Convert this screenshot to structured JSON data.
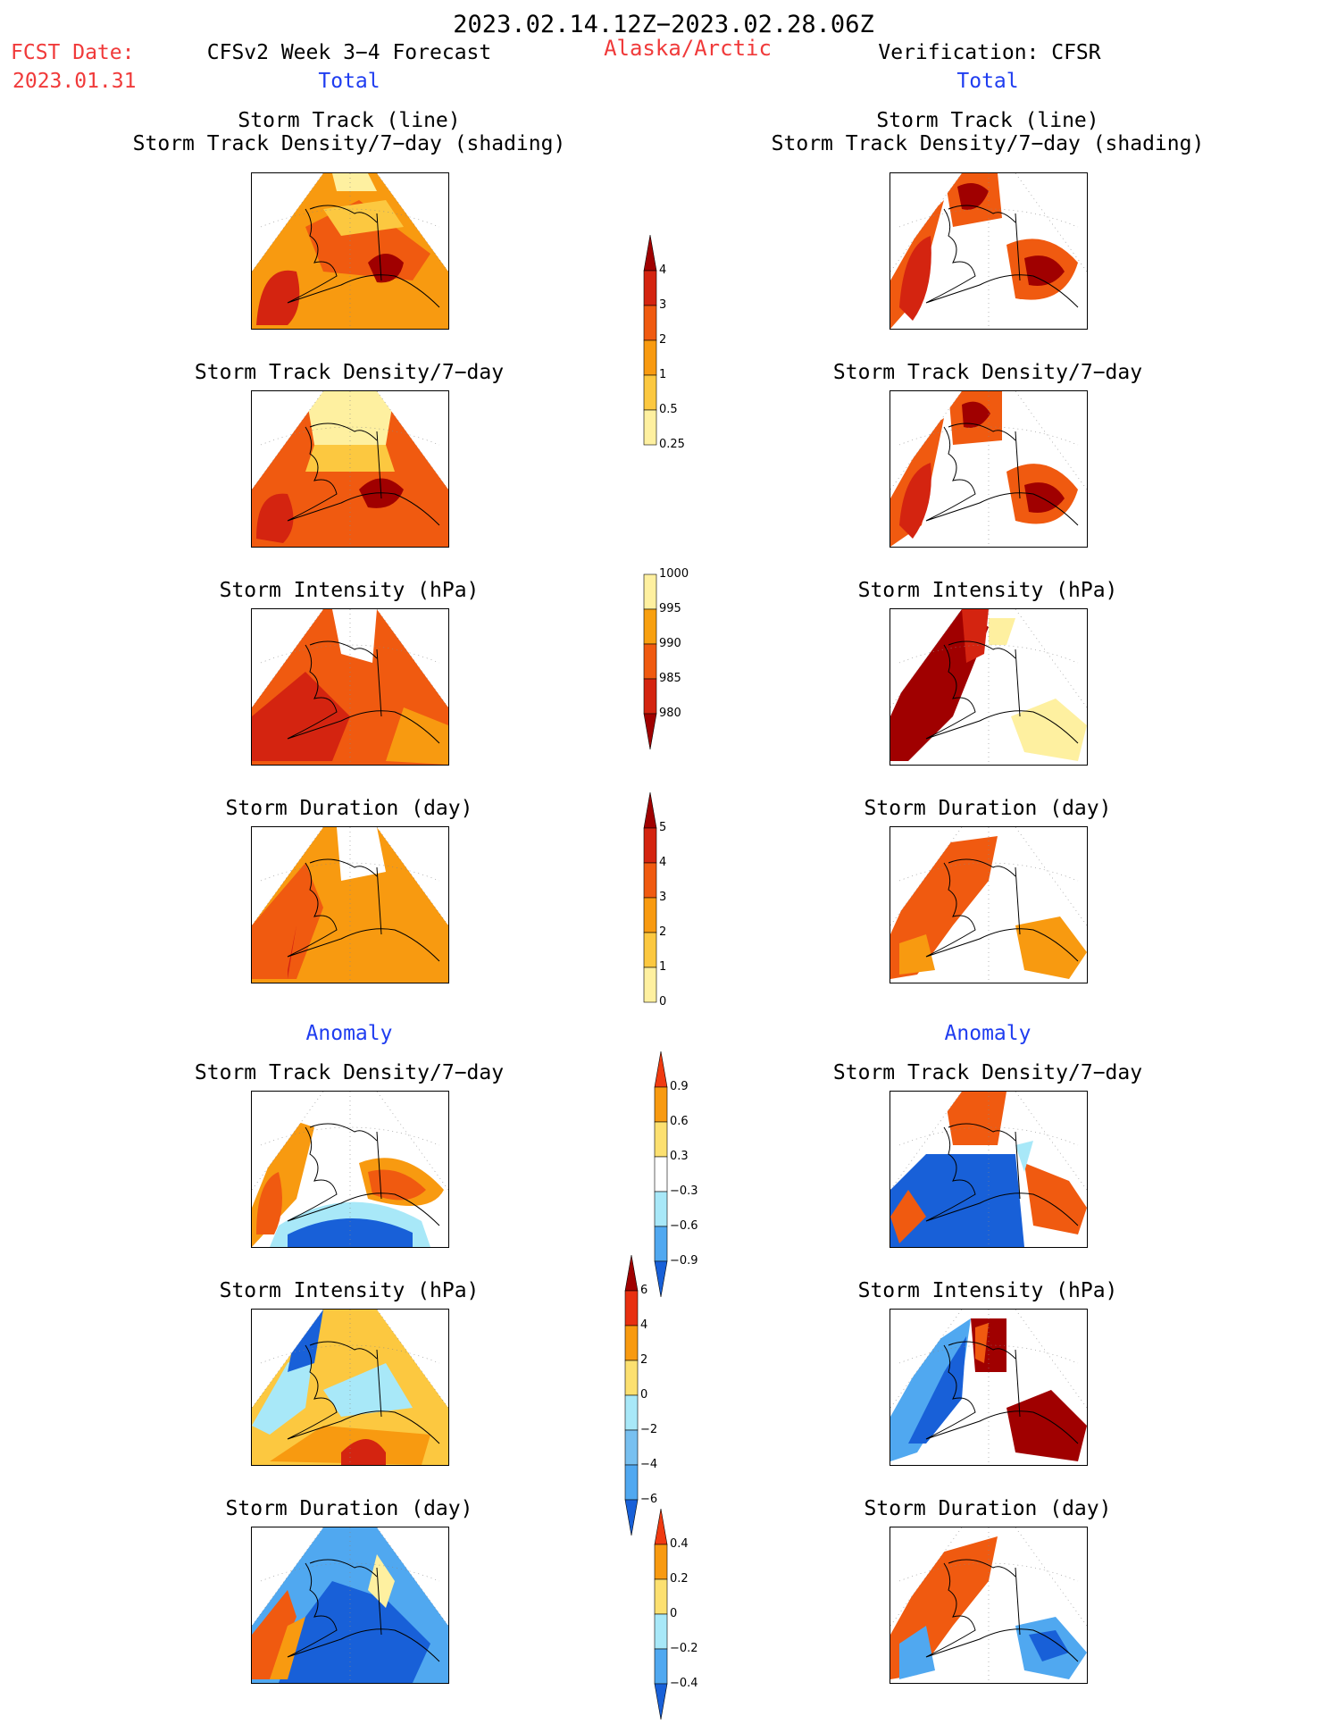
{
  "header": {
    "date_range": "2023.02.14.12Z−2023.02.28.06Z",
    "fcst_label": "FCST Date:",
    "fcst_date": "2023.01.31",
    "model_title": "CFSv2 Week 3−4 Forecast",
    "region": "Alaska/Arctic",
    "verification_title": "Verification: CFSR",
    "left_total": "Total",
    "right_total": "Total",
    "left_anomaly": "Anomaly",
    "right_anomaly": "Anomaly"
  },
  "panel_titles": {
    "track_line": "Storm Track (line)",
    "track_shading": "Storm Track Density/7−day (shading)",
    "density": "Storm Track Density/7−day",
    "intensity": "Storm Intensity (hPa)",
    "duration": "Storm Duration (day)"
  },
  "colorbars": {
    "density": {
      "labels": [
        "4",
        "3",
        "2",
        "1",
        "0.5",
        "0.25"
      ],
      "colors": [
        "#a00000",
        "#d42410",
        "#f05a10",
        "#f89a10",
        "#fcc840",
        "#fef0a0"
      ]
    },
    "intensity": {
      "labels": [
        "1000",
        "995",
        "990",
        "985",
        "980"
      ],
      "colors": [
        "#fef0a0",
        "#f8a010",
        "#f05a10",
        "#d42410",
        "#a00000"
      ]
    },
    "duration": {
      "labels": [
        "5",
        "4",
        "3",
        "2",
        "1",
        "0"
      ],
      "colors": [
        "#a00000",
        "#d42410",
        "#f05a10",
        "#f89a10",
        "#fcc840",
        "#fef0a0"
      ]
    },
    "anom_density": {
      "labels": [
        "0.9",
        "0.6",
        "0.3",
        "−0.3",
        "−0.6",
        "−0.9"
      ],
      "colors": [
        "#f03a10",
        "#f89a10",
        "#fce070",
        "#ffffff",
        "#a8e8f8",
        "#50a8f0",
        "#1860d8"
      ]
    },
    "anom_intensity": {
      "labels": [
        "6",
        "4",
        "2",
        "0",
        "−2",
        "−4",
        "−6"
      ],
      "colors": [
        "#a00000",
        "#e83010",
        "#f89a10",
        "#fce070",
        "#a8e8f8",
        "#78c0f0",
        "#50a8f0",
        "#1860d8"
      ]
    },
    "anom_duration": {
      "labels": [
        "0.4",
        "0.2",
        "0",
        "−0.2",
        "−0.4"
      ],
      "colors": [
        "#f03a10",
        "#f89a10",
        "#fce070",
        "#a8e8f8",
        "#50a8f0",
        "#1860d8"
      ]
    }
  },
  "colors": {
    "accent_red": "#f03a3a",
    "accent_blue": "#1f3df0"
  }
}
